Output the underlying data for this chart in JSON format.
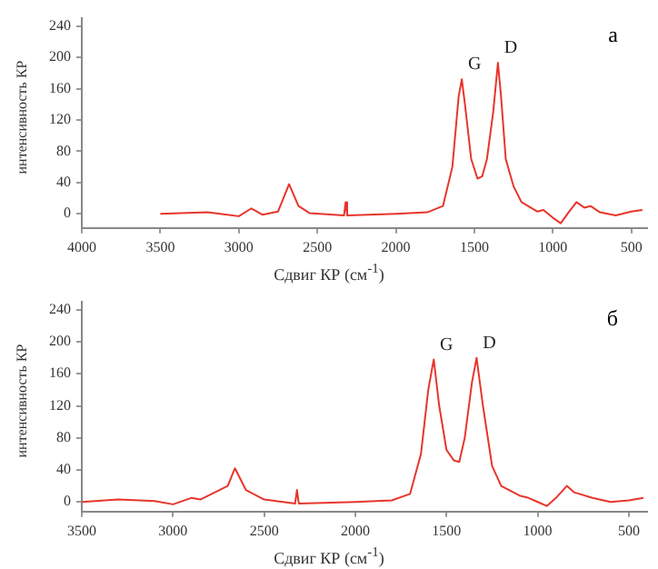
{
  "chart_data": [
    {
      "type": "line",
      "xlabel": "Сдвиг КР (см$^{-1}$)",
      "ylabel": "интенсивность КР",
      "xlim": [
        4000,
        400
      ],
      "xticks": [
        4000,
        3500,
        3000,
        2500,
        2000,
        1500,
        1000,
        500
      ],
      "ylim": [
        -18,
        250
      ],
      "yticks": [
        0,
        40,
        80,
        120,
        160,
        200,
        240
      ],
      "grid": false,
      "legend": false,
      "marker": "none",
      "line_style": "solid",
      "series": [
        {
          "color": "#e8352c",
          "x": [
            3500,
            3200,
            3000,
            2920,
            2850,
            2750,
            2680,
            2620,
            2550,
            2330,
            2320,
            2310,
            2000,
            1800,
            1700,
            1640,
            1600,
            1580,
            1560,
            1520,
            1480,
            1450,
            1420,
            1380,
            1350,
            1330,
            1300,
            1250,
            1200,
            1100,
            1060,
            1000,
            950,
            900,
            850,
            800,
            760,
            700,
            600,
            500,
            430
          ],
          "values": [
            0,
            2,
            -3,
            7,
            -1,
            3,
            38,
            10,
            1,
            -2,
            15,
            -2,
            0,
            2,
            10,
            60,
            150,
            172,
            140,
            70,
            45,
            48,
            70,
            130,
            193,
            150,
            70,
            35,
            15,
            3,
            5,
            -5,
            -12,
            2,
            15,
            8,
            10,
            2,
            -2,
            3,
            5
          ]
        }
      ],
      "annotations": [
        {
          "text": "G",
          "x": 1580,
          "y": 172
        },
        {
          "text": "D",
          "x": 1350,
          "y": 193
        },
        "а"
      ]
    },
    {
      "type": "line",
      "xlabel": "Сдвиг КР (см$^{-1}$)",
      "ylabel": "интенсивность КР",
      "xlim": [
        3500,
        400
      ],
      "xticks": [
        3500,
        3000,
        2500,
        2000,
        1500,
        1000,
        500
      ],
      "ylim": [
        -12,
        250
      ],
      "yticks": [
        0,
        40,
        80,
        120,
        160,
        200,
        240
      ],
      "grid": false,
      "legend": false,
      "marker": "none",
      "line_style": "solid",
      "series": [
        {
          "color": "#e8352c",
          "x": [
            3500,
            3300,
            3100,
            3000,
            2900,
            2850,
            2700,
            2660,
            2600,
            2500,
            2330,
            2320,
            2310,
            2000,
            1800,
            1700,
            1640,
            1600,
            1570,
            1540,
            1500,
            1460,
            1430,
            1400,
            1360,
            1335,
            1300,
            1250,
            1200,
            1100,
            1050,
            1000,
            950,
            900,
            840,
            800,
            700,
            600,
            500,
            420
          ],
          "values": [
            0,
            3,
            1,
            -3,
            5,
            3,
            20,
            42,
            15,
            3,
            -2,
            15,
            -2,
            0,
            2,
            10,
            60,
            140,
            178,
            120,
            65,
            52,
            50,
            80,
            150,
            180,
            120,
            45,
            20,
            8,
            5,
            0,
            -5,
            5,
            20,
            12,
            5,
            0,
            2,
            5
          ]
        }
      ],
      "annotations": [
        {
          "text": "G",
          "x": 1570,
          "y": 178
        },
        {
          "text": "D",
          "x": 1335,
          "y": 180
        },
        "б"
      ]
    }
  ]
}
